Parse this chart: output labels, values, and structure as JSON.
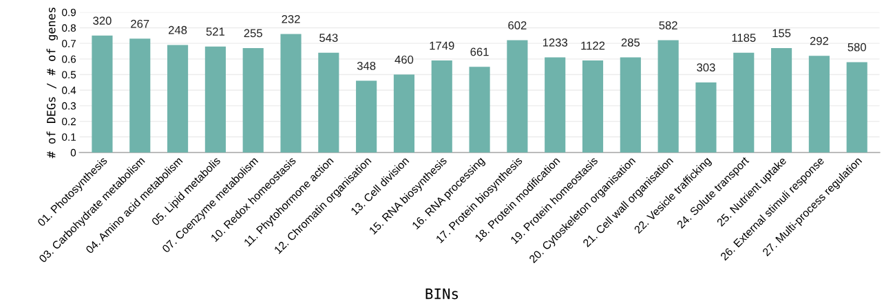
{
  "chart_data": {
    "type": "bar",
    "xlabel": "BINs",
    "ylabel": "# of DEGs / # of genes",
    "categories": [
      "01. Photosynthesis",
      "03. Carbohydrate metabolism",
      "04. Amino acid metabolism",
      "05. Lipid metabolis",
      "07. Coenzyme metabolism",
      "10. Redox homeostasis",
      "11. Phytohormone action",
      "12. Chromatin organisation",
      "13. Cell division",
      "15. RNA biosynthesis",
      "16. RNA processing",
      "17. Protein biosynthesis",
      "18. Protein modification",
      "19. Protein homeostasis",
      "20. Cytoskeleton organisation",
      "21. Cell wall organisation",
      "22. Vesicle trafficking",
      "24. Solute transport",
      "25. Nutrient uptake",
      "26. External stimuli response",
      "27. Multi-process regulation"
    ],
    "values": [
      0.75,
      0.73,
      0.69,
      0.68,
      0.67,
      0.76,
      0.64,
      0.46,
      0.5,
      0.59,
      0.55,
      0.72,
      0.61,
      0.59,
      0.61,
      0.72,
      0.45,
      0.64,
      0.67,
      0.62,
      0.58
    ],
    "annotations": [
      {
        "text": "320",
        "x": "01. Photosynthesis",
        "y": 0.75
      },
      {
        "text": "267",
        "x": "03. Carbohydrate metabolism",
        "y": 0.73
      },
      {
        "text": "248",
        "x": "04. Amino acid metabolism",
        "y": 0.69
      },
      {
        "text": "521",
        "x": "05. Lipid metabolis",
        "y": 0.68
      },
      {
        "text": "255",
        "x": "07. Coenzyme metabolism",
        "y": 0.67
      },
      {
        "text": "232",
        "x": "10. Redox homeostasis",
        "y": 0.76
      },
      {
        "text": "543",
        "x": "11. Phytohormone action",
        "y": 0.64
      },
      {
        "text": "348",
        "x": "12. Chromatin organisation",
        "y": 0.46
      },
      {
        "text": "460",
        "x": "13. Cell division",
        "y": 0.5
      },
      {
        "text": "1749",
        "x": "15. RNA biosynthesis",
        "y": 0.59
      },
      {
        "text": "661",
        "x": "16. RNA processing",
        "y": 0.55
      },
      {
        "text": "602",
        "x": "17. Protein biosynthesis",
        "y": 0.72
      },
      {
        "text": "1233",
        "x": "18. Protein modification",
        "y": 0.61
      },
      {
        "text": "1122",
        "x": "19. Protein homeostasis",
        "y": 0.59
      },
      {
        "text": "285",
        "x": "20. Cytoskeleton organisation",
        "y": 0.61
      },
      {
        "text": "582",
        "x": "21. Cell wall organisation",
        "y": 0.72
      },
      {
        "text": "303",
        "x": "22. Vesicle trafficking",
        "y": 0.45
      },
      {
        "text": "1185",
        "x": "24. Solute transport",
        "y": 0.64
      },
      {
        "text": "155",
        "x": "25. Nutrient uptake",
        "y": 0.67
      },
      {
        "text": "292",
        "x": "26. External stimuli response",
        "y": 0.62
      },
      {
        "text": "580",
        "x": "27. Multi-process regulation",
        "y": 0.58
      }
    ],
    "color": "#6fb3ab",
    "ylim": [
      0,
      0.9
    ],
    "yticks": [
      0,
      0.1,
      0.2,
      0.3,
      0.4,
      0.5,
      0.6,
      0.7,
      0.8,
      0.9
    ],
    "grid": "y"
  }
}
